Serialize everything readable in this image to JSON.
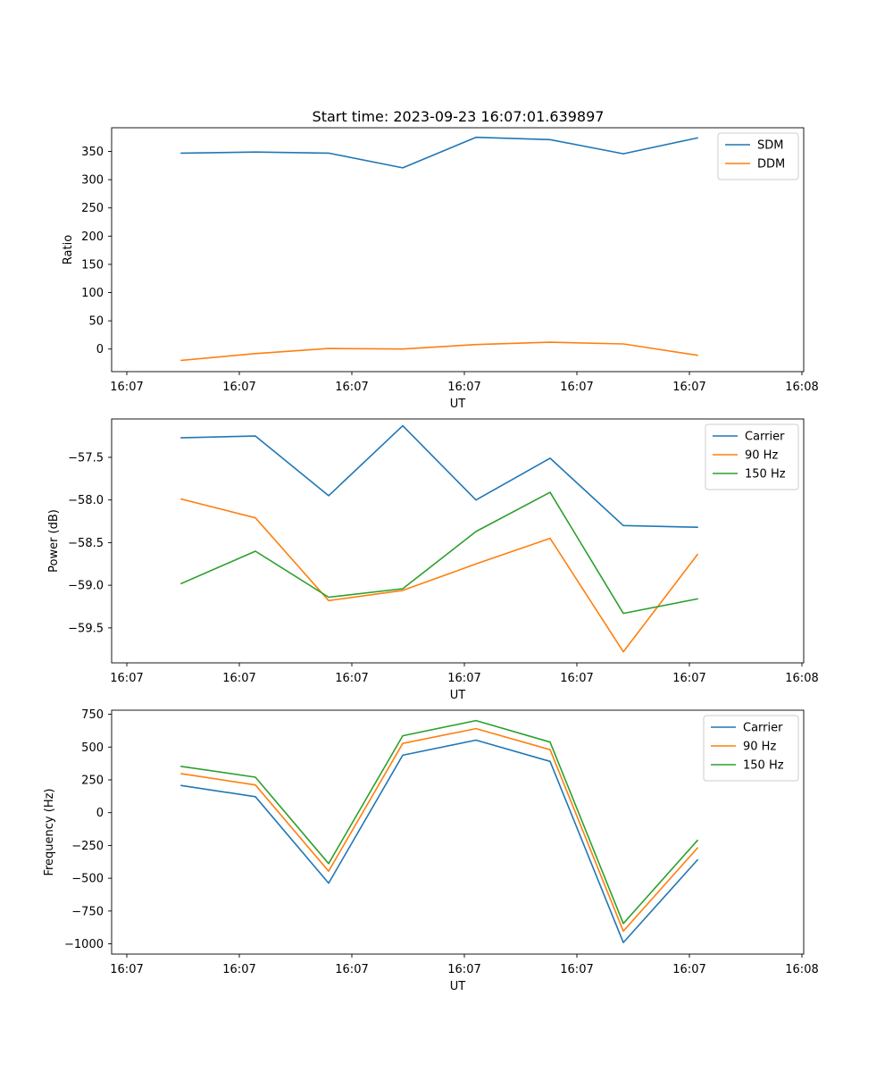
{
  "chart_data": [
    {
      "type": "line",
      "title": "Start time: 2023-09-23 16:07:01.639897",
      "xlabel": "UT",
      "ylabel": "Ratio",
      "x_tick_labels": [
        "16:07",
        "16:07",
        "16:07",
        "16:07",
        "16:07",
        "16:07",
        "16:08"
      ],
      "y_ticks": [
        0,
        50,
        100,
        150,
        200,
        250,
        300,
        350
      ],
      "y_tick_labels": [
        "0",
        "50",
        "100",
        "150",
        "200",
        "250",
        "300",
        "350"
      ],
      "ylim": [
        -40,
        392
      ],
      "legend_position": "top-right",
      "series": [
        {
          "name": "SDM",
          "color": "#1f77b4",
          "values": [
            347,
            349,
            347,
            321,
            375,
            371,
            346,
            374
          ]
        },
        {
          "name": "DDM",
          "color": "#ff7f0e",
          "values": [
            -20,
            -8,
            1,
            0,
            8,
            12,
            9,
            -11
          ]
        }
      ]
    },
    {
      "type": "line",
      "title": "",
      "xlabel": "UT",
      "ylabel": "Power (dB)",
      "x_tick_labels": [
        "16:07",
        "16:07",
        "16:07",
        "16:07",
        "16:07",
        "16:07",
        "16:08"
      ],
      "y_ticks": [
        -59.5,
        -59.0,
        -58.5,
        -58.0,
        -57.5
      ],
      "y_tick_labels": [
        "−59.5",
        "−59.0",
        "−58.5",
        "−58.0",
        "−57.5"
      ],
      "ylim": [
        -59.91,
        -57.05
      ],
      "legend_position": "top-right",
      "series": [
        {
          "name": "Carrier",
          "color": "#1f77b4",
          "values": [
            -57.27,
            -57.25,
            -57.95,
            -57.13,
            -58.0,
            -57.51,
            -58.3,
            -58.32
          ]
        },
        {
          "name": "90 Hz",
          "color": "#ff7f0e",
          "values": [
            -57.99,
            -58.21,
            -59.18,
            -59.06,
            -58.75,
            -58.45,
            -59.78,
            -58.64
          ]
        },
        {
          "name": "150 Hz",
          "color": "#2ca02c",
          "values": [
            -58.98,
            -58.6,
            -59.14,
            -59.04,
            -58.37,
            -57.91,
            -59.33,
            -59.16
          ]
        }
      ]
    },
    {
      "type": "line",
      "title": "",
      "xlabel": "UT",
      "ylabel": "Frequency (Hz)",
      "x_tick_labels": [
        "16:07",
        "16:07",
        "16:07",
        "16:07",
        "16:07",
        "16:07",
        "16:08"
      ],
      "y_ticks": [
        -1000,
        -750,
        -500,
        -250,
        0,
        250,
        500,
        750
      ],
      "y_tick_labels": [
        "−1000",
        "−750",
        "−500",
        "−250",
        "0",
        "250",
        "500",
        "750"
      ],
      "ylim": [
        -1078,
        781
      ],
      "legend_position": "top-right",
      "series": [
        {
          "name": "Carrier",
          "color": "#1f77b4",
          "values": [
            207,
            122,
            -537,
            438,
            553,
            391,
            -990,
            -360
          ]
        },
        {
          "name": "90 Hz",
          "color": "#ff7f0e",
          "values": [
            297,
            211,
            -446,
            528,
            641,
            480,
            -903,
            -270
          ]
        },
        {
          "name": "150 Hz",
          "color": "#2ca02c",
          "values": [
            353,
            270,
            -388,
            586,
            702,
            538,
            -845,
            -212
          ]
        }
      ]
    }
  ]
}
